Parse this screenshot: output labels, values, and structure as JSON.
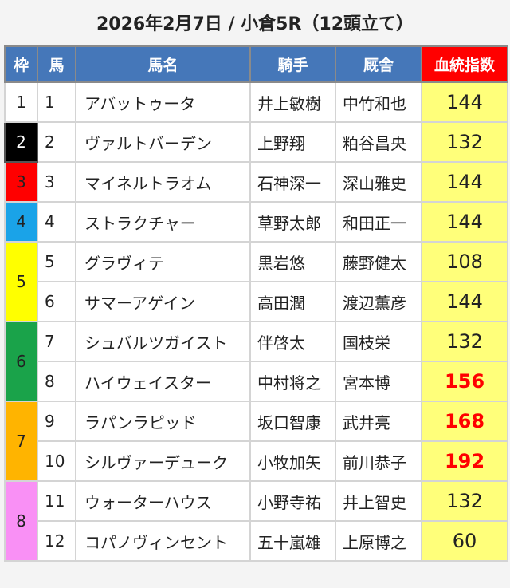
{
  "title": "2026年2月7日 / 小倉5R（12頭立て）",
  "headers": [
    "枠",
    "馬",
    "馬名",
    "騎手",
    "厩舎",
    "血統指数"
  ],
  "frame_colors": {
    "1": "#ffffff",
    "2": "#000000",
    "3": "#ff0000",
    "4": "#1aa3e8",
    "5": "#ffff00",
    "6": "#1aa34a",
    "7": "#ffb400",
    "8": "#f990f5"
  },
  "highlight_color": "#ff0000",
  "rows": [
    {
      "frame": "1",
      "num": "1",
      "name": "アバットゥータ",
      "jockey": "井上敏樹",
      "trainer": "中竹和也",
      "index": "144",
      "hi": false
    },
    {
      "frame": "2",
      "num": "2",
      "name": "ヴァルトバーデン",
      "jockey": "上野翔",
      "trainer": "粕谷昌央",
      "index": "132",
      "hi": false
    },
    {
      "frame": "3",
      "num": "3",
      "name": "マイネルトラオム",
      "jockey": "石神深一",
      "trainer": "深山雅史",
      "index": "144",
      "hi": false
    },
    {
      "frame": "4",
      "num": "4",
      "name": "ストラクチャー",
      "jockey": "草野太郎",
      "trainer": "和田正一",
      "index": "144",
      "hi": false
    },
    {
      "frame": "5",
      "num": "5",
      "name": "グラヴィテ",
      "jockey": "黒岩悠",
      "trainer": "藤野健太",
      "index": "108",
      "hi": false
    },
    {
      "frame": "5",
      "num": "6",
      "name": "サマーアゲイン",
      "jockey": "高田潤",
      "trainer": "渡辺薫彦",
      "index": "144",
      "hi": false
    },
    {
      "frame": "6",
      "num": "7",
      "name": "シュバルツガイスト",
      "jockey": "伴啓太",
      "trainer": "国枝栄",
      "index": "132",
      "hi": false
    },
    {
      "frame": "6",
      "num": "8",
      "name": "ハイウェイスター",
      "jockey": "中村将之",
      "trainer": "宮本博",
      "index": "156",
      "hi": true
    },
    {
      "frame": "7",
      "num": "9",
      "name": "ラパンラピッド",
      "jockey": "坂口智康",
      "trainer": "武井亮",
      "index": "168",
      "hi": true
    },
    {
      "frame": "7",
      "num": "10",
      "name": "シルヴァーデューク",
      "jockey": "小牧加矢",
      "trainer": "前川恭子",
      "index": "192",
      "hi": true
    },
    {
      "frame": "8",
      "num": "11",
      "name": "ウォーターハウス",
      "jockey": "小野寺祐",
      "trainer": "井上智史",
      "index": "132",
      "hi": false
    },
    {
      "frame": "8",
      "num": "12",
      "name": "コパノヴィンセント",
      "jockey": "五十嵐雄",
      "trainer": "上原博之",
      "index": "60",
      "hi": false
    }
  ]
}
